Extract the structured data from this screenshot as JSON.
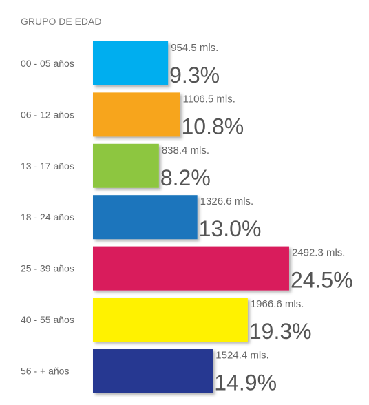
{
  "chart_data": {
    "type": "bar",
    "orientation": "horizontal",
    "title": "GRUPO DE EDAD",
    "categories": [
      "00 - 05 años",
      "06 - 12 años",
      "13 - 17 años",
      "18 - 24 años",
      "25 - 39 años",
      "40 - 55 años",
      "56 - + años"
    ],
    "values": [
      954.5,
      1106.5,
      838.4,
      1326.6,
      2492.3,
      1966.6,
      1524.4
    ],
    "value_labels": [
      "954.5 mls.",
      "1106.5 mls.",
      "838.4 mls.",
      "1326.6 mls.",
      "2492.3 mls.",
      "1966.6 mls.",
      "1524.4 mls."
    ],
    "percent_values": [
      9.3,
      10.8,
      8.2,
      13.0,
      24.5,
      19.3,
      14.9
    ],
    "percent_labels": [
      "9.3%",
      "10.8%",
      "8.2%",
      "13.0%",
      "24.5%",
      "19.3%",
      "14.9%"
    ],
    "colors": [
      "#00aeef",
      "#f7a51c",
      "#8dc63f",
      "#1a75bc",
      "#d91a5b",
      "#fff200",
      "#283891"
    ],
    "xlim": [
      0,
      3000
    ]
  }
}
